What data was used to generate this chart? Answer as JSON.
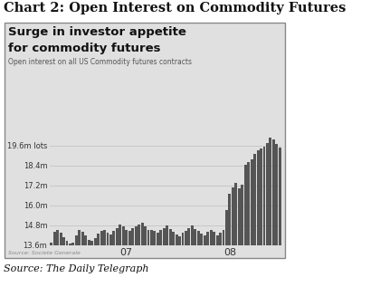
{
  "title": "Chart 2: Open Interest on Commodity Futures",
  "chart_title_line1": "Surge in investor appetite",
  "chart_title_line2": "for commodity futures",
  "chart_subtitle": "Open interest on all US Commodity futures contracts",
  "source_inner": "Source: Societe Generale",
  "source_outer": "Source: The Daily Telegraph",
  "ytick_labels": [
    "13.6m",
    "14.8m",
    "16.0m",
    "17.2m",
    "18.4m",
    "19.6m lots"
  ],
  "ytick_values": [
    13.6,
    14.8,
    16.0,
    17.2,
    18.4,
    19.6
  ],
  "xtick_labels": [
    "07",
    "08"
  ],
  "xtick_pos": [
    24,
    57
  ],
  "ymin": 13.6,
  "ymax": 20.3,
  "bar_color": "#555555",
  "background_color": "#e0e0e0",
  "box_edge_color": "#888888",
  "outer_background": "#ffffff",
  "title_color": "#111111",
  "subtitle_color": "#555555",
  "source_inner_color": "#888888",
  "source_outer_color": "#111111",
  "grid_color": "#c8c8c8",
  "values": [
    13.75,
    14.4,
    14.5,
    14.35,
    14.1,
    13.85,
    13.7,
    13.75,
    14.2,
    14.5,
    14.4,
    14.2,
    13.95,
    13.85,
    14.05,
    14.3,
    14.45,
    14.55,
    14.35,
    14.25,
    14.45,
    14.65,
    14.85,
    14.75,
    14.55,
    14.45,
    14.65,
    14.75,
    14.85,
    14.95,
    14.75,
    14.55,
    14.5,
    14.45,
    14.35,
    14.5,
    14.65,
    14.8,
    14.6,
    14.4,
    14.25,
    14.15,
    14.35,
    14.45,
    14.65,
    14.8,
    14.6,
    14.45,
    14.3,
    14.2,
    14.4,
    14.5,
    14.4,
    14.2,
    14.35,
    14.5,
    15.7,
    16.7,
    17.1,
    17.35,
    17.05,
    17.25,
    18.45,
    18.6,
    18.75,
    19.1,
    19.3,
    19.45,
    19.55,
    19.75,
    20.1,
    19.95,
    19.7,
    19.5
  ]
}
